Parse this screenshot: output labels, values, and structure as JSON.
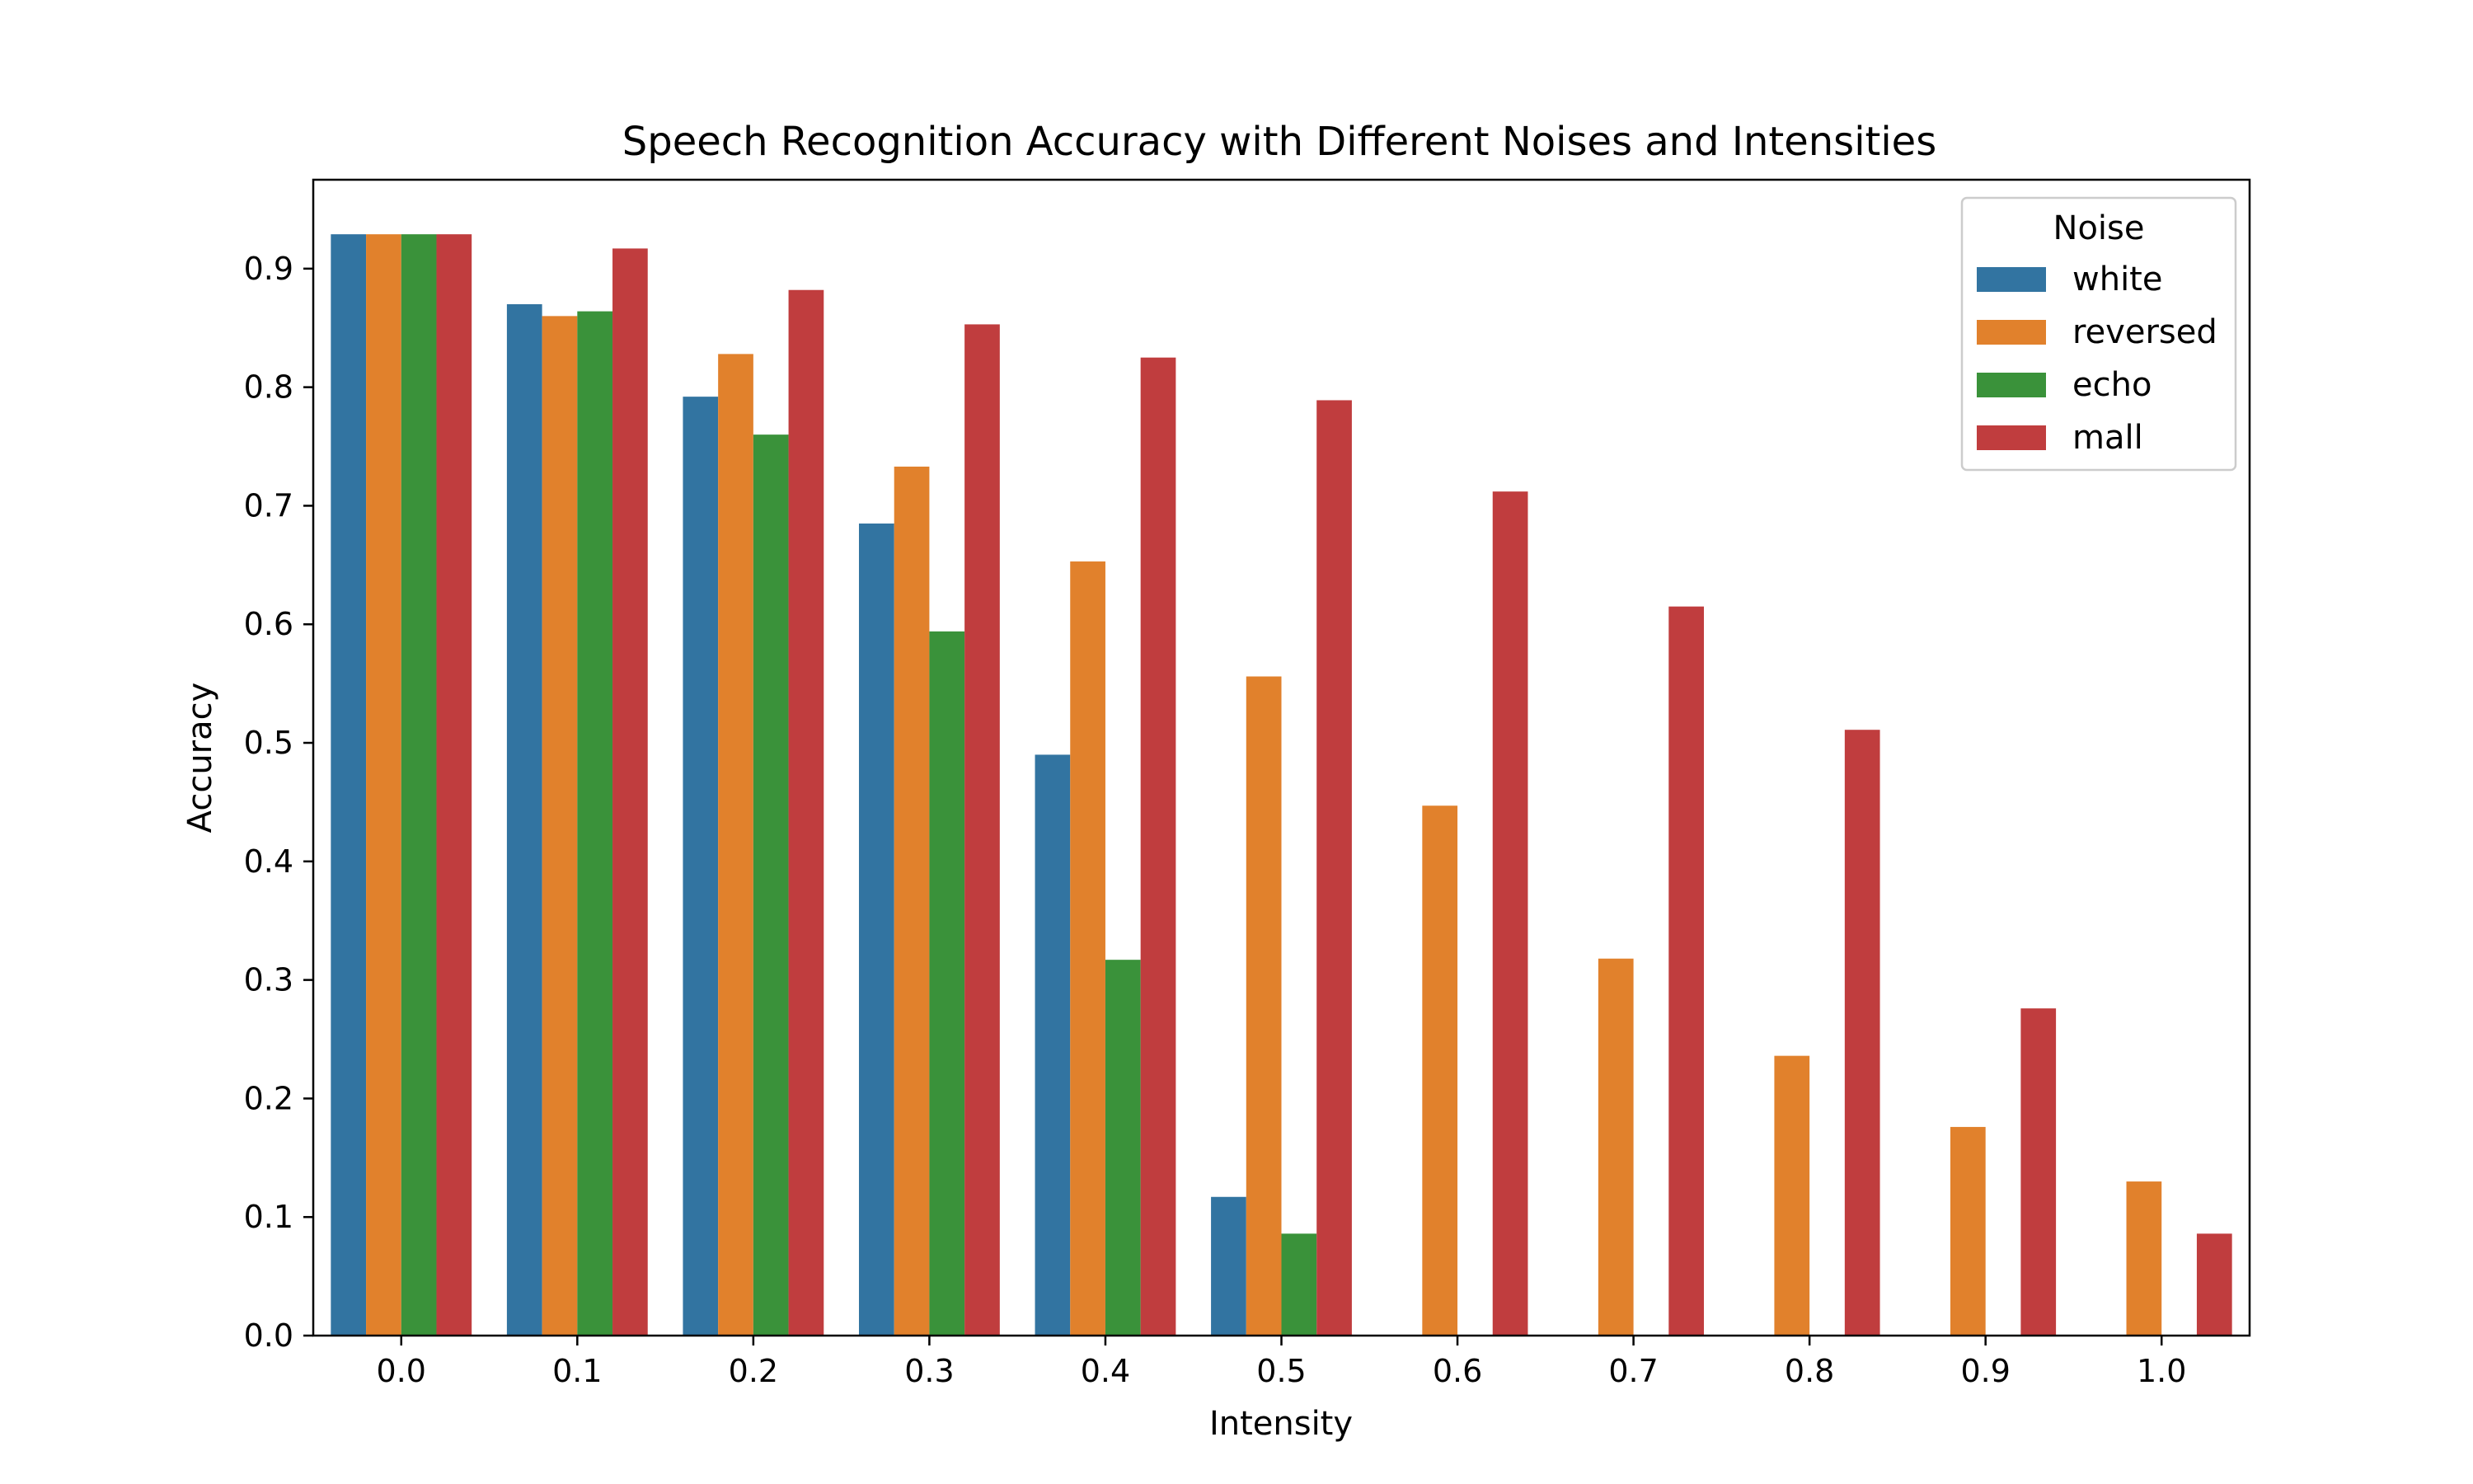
{
  "chart_data": {
    "type": "bar",
    "title": "Speech Recognition Accuracy with Different Noises and Intensities",
    "xlabel": "Intensity",
    "ylabel": "Accuracy",
    "categories": [
      "0.0",
      "0.1",
      "0.2",
      "0.3",
      "0.4",
      "0.5",
      "0.6",
      "0.7",
      "0.8",
      "0.9",
      "1.0"
    ],
    "ylim": [
      0,
      0.975
    ],
    "yticks": [
      "0.0",
      "0.1",
      "0.2",
      "0.3",
      "0.4",
      "0.5",
      "0.6",
      "0.7",
      "0.8",
      "0.9"
    ],
    "grid": false,
    "legend": {
      "title": "Noise",
      "placement": "top-right"
    },
    "series": [
      {
        "name": "white",
        "color": "#3274a1",
        "values": [
          0.929,
          0.87,
          0.792,
          0.685,
          0.49,
          0.117,
          null,
          null,
          null,
          null,
          null
        ]
      },
      {
        "name": "reversed",
        "color": "#e1812c",
        "values": [
          0.929,
          0.86,
          0.828,
          0.733,
          0.653,
          0.556,
          0.447,
          0.318,
          0.236,
          0.176,
          0.13
        ]
      },
      {
        "name": "echo",
        "color": "#3a923a",
        "values": [
          0.929,
          0.864,
          0.76,
          0.594,
          0.317,
          0.086,
          null,
          null,
          null,
          null,
          null
        ]
      },
      {
        "name": "mall",
        "color": "#c03d3e",
        "values": [
          0.929,
          0.917,
          0.882,
          0.853,
          0.825,
          0.789,
          0.712,
          0.615,
          0.511,
          0.276,
          0.086
        ]
      }
    ]
  }
}
